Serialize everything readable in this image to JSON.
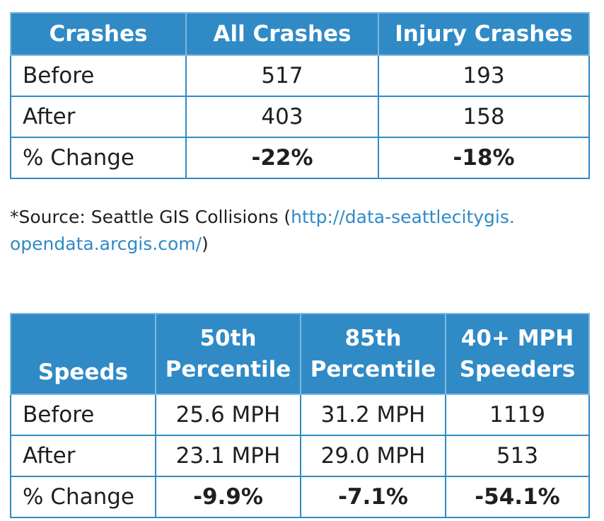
{
  "crashes_table": {
    "headers": [
      "Crashes",
      "All Crashes",
      "Injury Crashes"
    ],
    "rows": [
      {
        "label": "Before",
        "values": [
          "517",
          "193"
        ]
      },
      {
        "label": "After",
        "values": [
          "403",
          "158"
        ]
      },
      {
        "label": "% Change",
        "values": [
          "-22%",
          "-18%"
        ]
      }
    ]
  },
  "source_note": {
    "prefix": "*Source: Seattle GIS Collisions (",
    "link_line1": "http://data-seattlecitygis.",
    "link_line2": "opendata.arcgis.com/",
    "suffix": ")"
  },
  "speeds_table": {
    "headers": [
      {
        "line1": "",
        "line2": "Speeds"
      },
      {
        "line1": "50th",
        "line2": "Percentile"
      },
      {
        "line1": "85th",
        "line2": "Percentile"
      },
      {
        "line1": "40+ MPH",
        "line2": "Speeders"
      }
    ],
    "rows": [
      {
        "label": "Before",
        "values": [
          "25.6 MPH",
          "31.2 MPH",
          "1119"
        ]
      },
      {
        "label": "After",
        "values": [
          "23.1 MPH",
          "29.0 MPH",
          "513"
        ]
      },
      {
        "label": "% Change",
        "values": [
          "-9.9%",
          "-7.1%",
          "-54.1%"
        ]
      }
    ]
  },
  "colors": {
    "header_background": "#2f8ac6",
    "header_text": "#ffffff",
    "border": "#2f8ac6",
    "link": "#2f8ac6"
  }
}
